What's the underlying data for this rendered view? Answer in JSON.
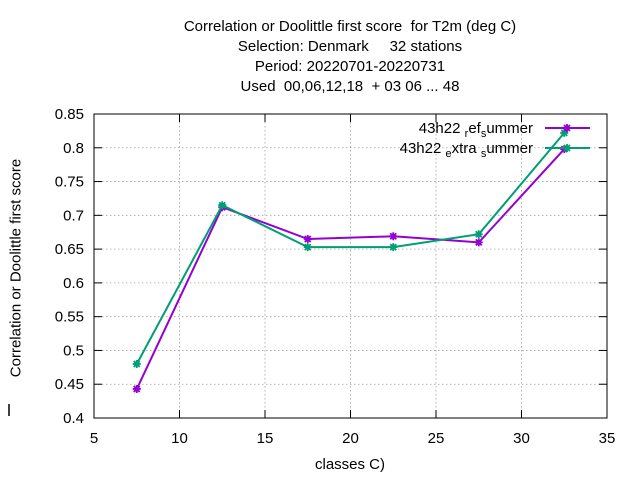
{
  "chart_data": {
    "type": "line",
    "title_lines": [
      "Correlation or Doolittle first score  for T2m (deg C)",
      "Selection: Denmark     32 stations",
      "Period: 20220701-20220731",
      "Used  00,06,12,18  + 03 06 ... 48"
    ],
    "xlabel": "classes C)",
    "ylabel": "Correlation or Doolittle first score",
    "xlim": [
      5,
      35
    ],
    "ylim": [
      0.4,
      0.85
    ],
    "xticks": [
      "5",
      "10",
      "15",
      "20",
      "25",
      "30",
      "35"
    ],
    "yticks": [
      "0.4",
      "0.45",
      "0.5",
      "0.55",
      "0.6",
      "0.65",
      "0.7",
      "0.75",
      "0.8",
      "0.85"
    ],
    "grid": true,
    "legend_position": "top-right",
    "x": [
      7.5,
      12.5,
      17.5,
      22.5,
      27.5,
      32.5
    ],
    "series": [
      {
        "name": "43h22_ref_summer",
        "legend_parts": [
          [
            "43h22 ",
            "normal"
          ],
          [
            "r",
            "sub"
          ],
          [
            "ef",
            "normal"
          ],
          [
            "s",
            "sub"
          ],
          [
            "ummer",
            "normal"
          ]
        ],
        "color": "#9400d3",
        "values": [
          0.443,
          0.712,
          0.665,
          0.669,
          0.66,
          0.798
        ]
      },
      {
        "name": "43h22_extra_summer",
        "legend_parts": [
          [
            "43h22 ",
            "normal"
          ],
          [
            "e",
            "sub"
          ],
          [
            "xtra ",
            "normal"
          ],
          [
            "s",
            "sub"
          ],
          [
            "ummer",
            "normal"
          ]
        ],
        "color": "#009e73",
        "values": [
          0.48,
          0.715,
          0.653,
          0.653,
          0.672,
          0.822
        ]
      }
    ]
  }
}
